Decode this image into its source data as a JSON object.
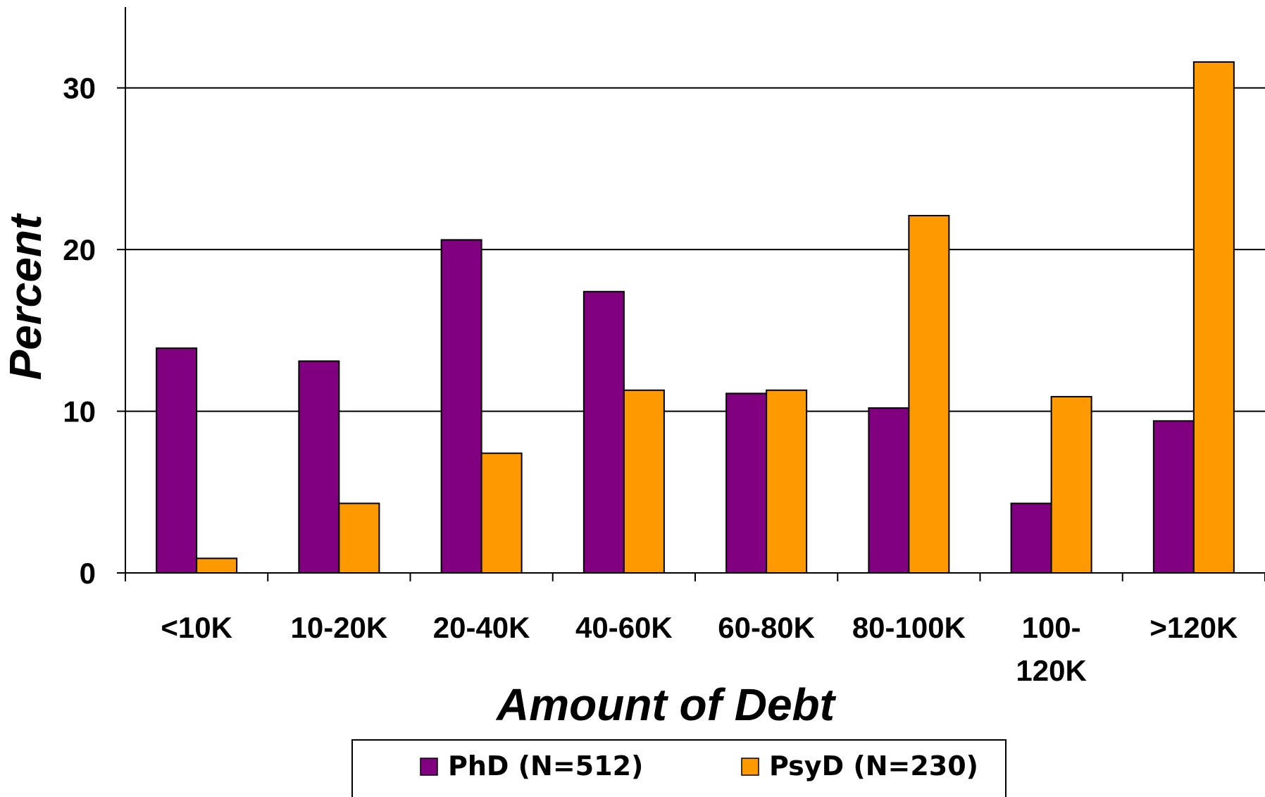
{
  "chart_data": {
    "type": "bar",
    "title": "",
    "xlabel": "Amount of Debt",
    "ylabel": "Percent",
    "categories": [
      "<10K",
      "10-20K",
      "20-40K",
      "40-60K",
      "60-80K",
      "80-100K",
      "100-120K",
      ">120K"
    ],
    "category_label_lines": [
      [
        "<10K"
      ],
      [
        "10-20K"
      ],
      [
        "20-40K"
      ],
      [
        "40-60K"
      ],
      [
        "60-80K"
      ],
      [
        "80-100K"
      ],
      [
        "100-",
        "120K"
      ],
      [
        ">120K"
      ]
    ],
    "series": [
      {
        "name": "PhD (N=512)",
        "color": "#800080",
        "values": [
          13.9,
          13.1,
          20.6,
          17.4,
          11.1,
          10.2,
          4.3,
          9.4
        ]
      },
      {
        "name": "PsyD (N=230)",
        "color": "#FF9900",
        "values": [
          0.9,
          4.3,
          7.4,
          11.3,
          11.3,
          22.1,
          10.9,
          31.6
        ]
      }
    ],
    "ylim": [
      0,
      35
    ],
    "yticks": [
      0,
      10,
      20,
      30
    ],
    "grid": true,
    "legend_position": "bottom"
  }
}
